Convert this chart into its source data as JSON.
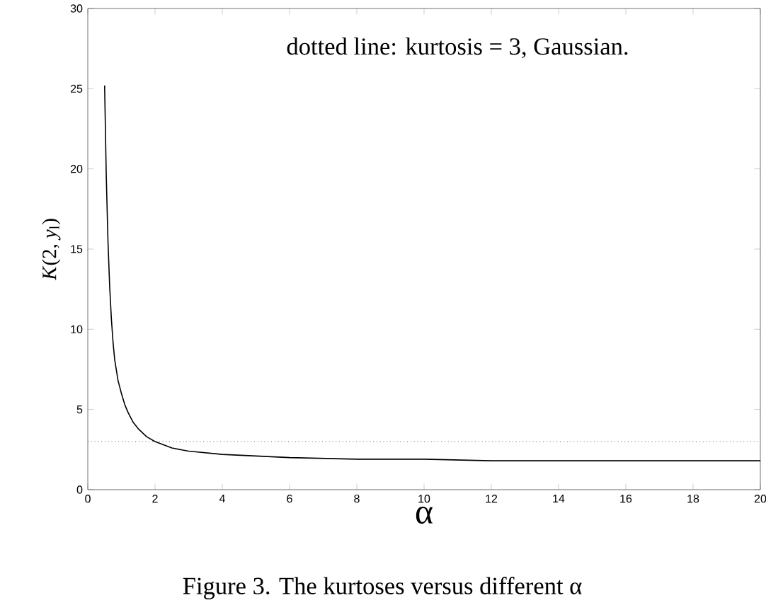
{
  "chart_data": {
    "type": "line",
    "xlabel": "α",
    "ylabel": "*K*(2, *y*$_{l}$)",
    "annotations": [
      "dotted line: kurtosis = 3, Gaussian.",
      "Figure 3. The kurtoses versus different α"
    ],
    "x": [
      0.5,
      0.55,
      0.6,
      0.65,
      0.7,
      0.75,
      0.8,
      0.9,
      1.0,
      1.1,
      1.2,
      1.35,
      1.5,
      1.75,
      2.0,
      2.5,
      3,
      4,
      5,
      6,
      8,
      10,
      12,
      14,
      16,
      18,
      20
    ],
    "series": [
      {
        "color": "#000000",
        "values": [
          25.2,
          19.5,
          15.5,
          12.7,
          10.7,
          9.2,
          8.1,
          6.8,
          6.0,
          5.3,
          4.8,
          4.2,
          3.8,
          3.3,
          3.0,
          2.6,
          2.4,
          2.2,
          2.1,
          2.0,
          1.9,
          1.9,
          1.8,
          1.8,
          1.8,
          1.8,
          1.8
        ]
      }
    ],
    "xlim": [
      0,
      20
    ],
    "ylim": [
      0,
      30
    ],
    "xticks": [
      0,
      2,
      4,
      6,
      8,
      10,
      12,
      14,
      16,
      18,
      20
    ],
    "yticks": [
      0,
      5,
      10,
      15,
      20,
      25,
      30
    ],
    "grid": false,
    "marker": "none",
    "line_style": "solid",
    "ref_lines": [
      {
        "axis": "y",
        "value": 3,
        "line_style": "dotted",
        "color": "#000000"
      }
    ]
  }
}
